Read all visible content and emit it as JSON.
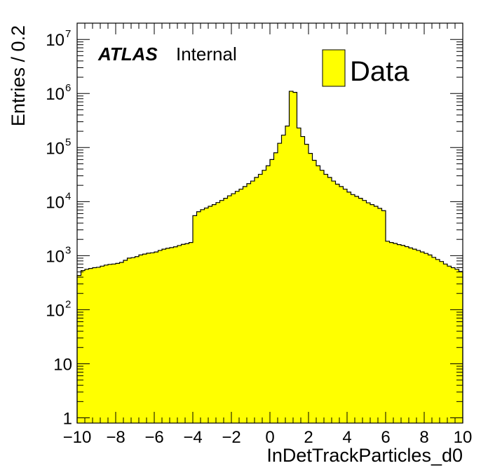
{
  "chart_data": {
    "type": "bar",
    "style": "step-filled histogram",
    "xlabel": "InDetTrackParticles_d0",
    "ylabel": "Entries / 0.2",
    "xlim": [
      -10,
      10
    ],
    "ylim": [
      0.8,
      20000000
    ],
    "log_y": true,
    "grid": false,
    "experiment_label": "ATLAS",
    "experiment_status": "Internal",
    "legend": {
      "placement": "top-right",
      "entries": [
        "Data"
      ]
    },
    "x_ticks": [
      "−10",
      "−8",
      "−6",
      "−4",
      "−2",
      "0",
      "2",
      "4",
      "6",
      "8",
      "10"
    ],
    "y_ticks": [
      {
        "value": 1,
        "mantissa": "1",
        "exponent": ""
      },
      {
        "value": 10,
        "mantissa": "10",
        "exponent": ""
      },
      {
        "value": 100,
        "mantissa": "10",
        "exponent": "2"
      },
      {
        "value": 1000,
        "mantissa": "10",
        "exponent": "3"
      },
      {
        "value": 10000,
        "mantissa": "10",
        "exponent": "4"
      },
      {
        "value": 100000,
        "mantissa": "10",
        "exponent": "5"
      },
      {
        "value": 1000000,
        "mantissa": "10",
        "exponent": "6"
      },
      {
        "value": 10000000,
        "mantissa": "10",
        "exponent": "7"
      }
    ],
    "series": [
      {
        "name": "Data",
        "color": "#ffff00",
        "edge_color": "#000000",
        "bin_width": 0.2,
        "x_start": -10,
        "values": [
          430,
          530,
          560,
          580,
          600,
          610,
          640,
          670,
          690,
          700,
          720,
          750,
          820,
          900,
          920,
          960,
          1030,
          1070,
          1110,
          1130,
          1170,
          1250,
          1320,
          1370,
          1410,
          1460,
          1540,
          1620,
          1670,
          1750,
          5500,
          6500,
          7100,
          7600,
          8200,
          8800,
          9600,
          10500,
          11500,
          12800,
          14000,
          15500,
          17000,
          19000,
          21500,
          24000,
          28000,
          32000,
          38000,
          46000,
          60000,
          80000,
          120000,
          170000,
          250000,
          1100000,
          1050000,
          230000,
          160000,
          115000,
          78000,
          58000,
          46000,
          38000,
          32000,
          28000,
          24000,
          21000,
          19000,
          17000,
          15000,
          13500,
          12500,
          11500,
          10500,
          9500,
          8800,
          8200,
          7500,
          6800,
          1850,
          1750,
          1680,
          1600,
          1550,
          1470,
          1390,
          1320,
          1250,
          1170,
          1100,
          1030,
          930,
          850,
          780,
          700,
          640,
          600,
          560,
          510
        ]
      }
    ]
  }
}
